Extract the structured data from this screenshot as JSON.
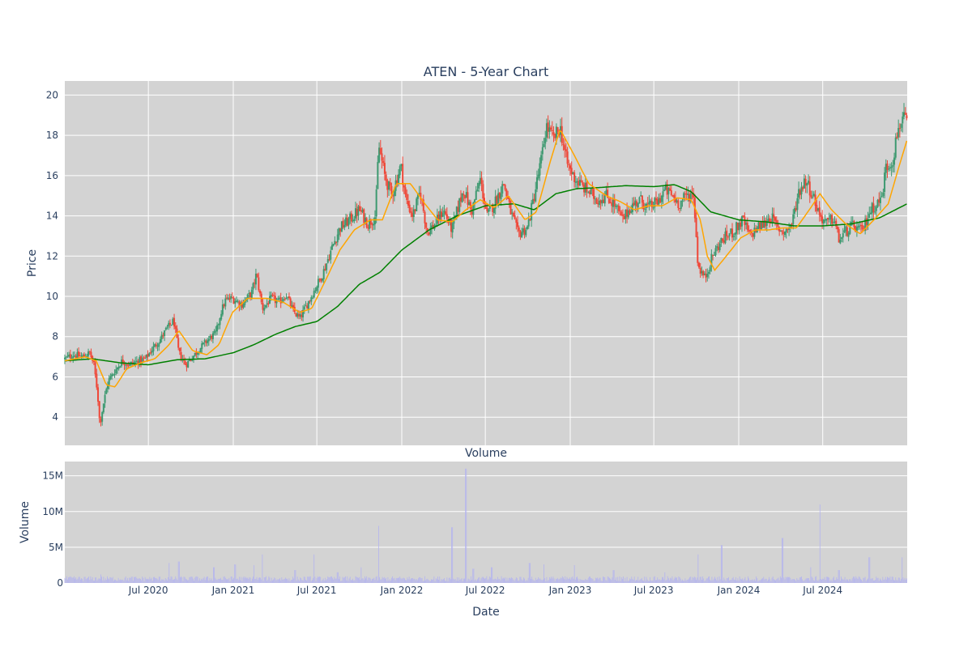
{
  "chart_data": [
    {
      "type": "candlestick",
      "title": "ATEN - 5-Year Chart",
      "ylabel": "Price",
      "xlabel": "",
      "ylim": [
        2.6,
        20.7
      ],
      "yticks": [
        4,
        6,
        8,
        10,
        12,
        14,
        16,
        18,
        20
      ],
      "grid": true,
      "up_color": "#3d9970",
      "down_color": "#ef4637",
      "x_range": [
        "2020-01-02",
        "2024-12-31"
      ],
      "price_path": [
        [
          "2020-01-02",
          6.9
        ],
        [
          "2020-01-20",
          7.1
        ],
        [
          "2020-02-10",
          7.0
        ],
        [
          "2020-02-25",
          7.2
        ],
        [
          "2020-03-05",
          6.6
        ],
        [
          "2020-03-13",
          5.2
        ],
        [
          "2020-03-18",
          3.6
        ],
        [
          "2020-03-25",
          4.6
        ],
        [
          "2020-04-05",
          5.8
        ],
        [
          "2020-04-20",
          6.3
        ],
        [
          "2020-05-05",
          6.8
        ],
        [
          "2020-05-20",
          6.6
        ],
        [
          "2020-06-10",
          6.8
        ],
        [
          "2020-06-25",
          6.9
        ],
        [
          "2020-07-10",
          7.4
        ],
        [
          "2020-07-25",
          7.8
        ],
        [
          "2020-08-10",
          8.4
        ],
        [
          "2020-08-25",
          8.8
        ],
        [
          "2020-09-05",
          7.2
        ],
        [
          "2020-09-20",
          6.6
        ],
        [
          "2020-10-05",
          7.0
        ],
        [
          "2020-10-20",
          7.4
        ],
        [
          "2020-11-05",
          7.8
        ],
        [
          "2020-11-25",
          8.2
        ],
        [
          "2020-12-05",
          9.2
        ],
        [
          "2020-12-15",
          9.8
        ],
        [
          "2020-12-30",
          9.9
        ],
        [
          "2021-01-20",
          9.6
        ],
        [
          "2021-02-10",
          10.2
        ],
        [
          "2021-02-20",
          11.1
        ],
        [
          "2021-03-05",
          9.4
        ],
        [
          "2021-03-25",
          9.9
        ],
        [
          "2021-04-10",
          9.7
        ],
        [
          "2021-04-25",
          10.1
        ],
        [
          "2021-05-10",
          9.3
        ],
        [
          "2021-05-25",
          8.9
        ],
        [
          "2021-06-10",
          9.6
        ],
        [
          "2021-06-30",
          10.5
        ],
        [
          "2021-07-15",
          11.2
        ],
        [
          "2021-08-01",
          12.3
        ],
        [
          "2021-08-20",
          13.4
        ],
        [
          "2021-09-10",
          13.8
        ],
        [
          "2021-10-01",
          14.3
        ],
        [
          "2021-10-20",
          13.6
        ],
        [
          "2021-11-05",
          14.0
        ],
        [
          "2021-11-12",
          17.5
        ],
        [
          "2021-11-25",
          16.0
        ],
        [
          "2021-12-10",
          15.0
        ],
        [
          "2021-12-30",
          16.5
        ],
        [
          "2022-01-10",
          14.8
        ],
        [
          "2022-01-25",
          14.0
        ],
        [
          "2022-02-10",
          15.2
        ],
        [
          "2022-02-25",
          13.2
        ],
        [
          "2022-03-15",
          13.6
        ],
        [
          "2022-04-01",
          14.3
        ],
        [
          "2022-04-20",
          13.3
        ],
        [
          "2022-05-05",
          14.6
        ],
        [
          "2022-05-15",
          15.3
        ],
        [
          "2022-06-01",
          14.2
        ],
        [
          "2022-06-20",
          15.8
        ],
        [
          "2022-07-05",
          14.0
        ],
        [
          "2022-07-20",
          14.6
        ],
        [
          "2022-08-10",
          15.6
        ],
        [
          "2022-08-25",
          14.2
        ],
        [
          "2022-09-10",
          13.1
        ],
        [
          "2022-09-30",
          13.4
        ],
        [
          "2022-10-15",
          15.0
        ],
        [
          "2022-11-01",
          17.0
        ],
        [
          "2022-11-10",
          18.5
        ],
        [
          "2022-11-25",
          17.8
        ],
        [
          "2022-12-10",
          18.4
        ],
        [
          "2022-12-25",
          16.6
        ],
        [
          "2023-01-10",
          15.9
        ],
        [
          "2023-01-25",
          15.5
        ],
        [
          "2023-02-10",
          15.2
        ],
        [
          "2023-03-01",
          14.8
        ],
        [
          "2023-03-20",
          15.0
        ],
        [
          "2023-04-05",
          14.6
        ],
        [
          "2023-04-25",
          13.8
        ],
        [
          "2023-05-10",
          14.4
        ],
        [
          "2023-06-01",
          14.8
        ],
        [
          "2023-06-20",
          14.4
        ],
        [
          "2023-07-10",
          14.7
        ],
        [
          "2023-07-25",
          15.3
        ],
        [
          "2023-08-10",
          15.0
        ],
        [
          "2023-08-25",
          14.6
        ],
        [
          "2023-09-10",
          15.0
        ],
        [
          "2023-09-25",
          15.1
        ],
        [
          "2023-10-05",
          11.5
        ],
        [
          "2023-10-20",
          10.9
        ],
        [
          "2023-11-05",
          12.0
        ],
        [
          "2023-11-20",
          12.6
        ],
        [
          "2023-12-05",
          13.0
        ],
        [
          "2023-12-20",
          13.2
        ],
        [
          "2024-01-10",
          13.8
        ],
        [
          "2024-01-25",
          13.0
        ],
        [
          "2024-02-10",
          13.4
        ],
        [
          "2024-02-25",
          13.6
        ],
        [
          "2024-03-10",
          14.0
        ],
        [
          "2024-03-25",
          13.4
        ],
        [
          "2024-04-10",
          13.2
        ],
        [
          "2024-04-25",
          13.6
        ],
        [
          "2024-05-10",
          15.2
        ],
        [
          "2024-05-25",
          15.8
        ],
        [
          "2024-06-10",
          15.0
        ],
        [
          "2024-06-25",
          14.0
        ],
        [
          "2024-07-10",
          13.6
        ],
        [
          "2024-07-25",
          13.9
        ],
        [
          "2024-08-05",
          12.8
        ],
        [
          "2024-08-20",
          13.2
        ],
        [
          "2024-09-05",
          13.5
        ],
        [
          "2024-09-25",
          13.2
        ],
        [
          "2024-10-10",
          14.2
        ],
        [
          "2024-10-25",
          14.6
        ],
        [
          "2024-11-05",
          14.8
        ],
        [
          "2024-11-15",
          16.4
        ],
        [
          "2024-11-30",
          16.8
        ],
        [
          "2024-12-10",
          18.2
        ],
        [
          "2024-12-20",
          18.9
        ],
        [
          "2024-12-31",
          18.5
        ]
      ],
      "ma_short_path": [
        [
          "2020-01-02",
          6.8
        ],
        [
          "2020-02-15",
          7.0
        ],
        [
          "2020-03-10",
          6.8
        ],
        [
          "2020-04-01",
          5.6
        ],
        [
          "2020-04-20",
          5.5
        ],
        [
          "2020-05-15",
          6.4
        ],
        [
          "2020-06-15",
          6.7
        ],
        [
          "2020-07-15",
          6.9
        ],
        [
          "2020-08-15",
          7.6
        ],
        [
          "2020-09-05",
          8.3
        ],
        [
          "2020-10-05",
          7.3
        ],
        [
          "2020-11-05",
          7.1
        ],
        [
          "2020-12-01",
          7.6
        ],
        [
          "2020-12-30",
          9.2
        ],
        [
          "2021-02-01",
          9.9
        ],
        [
          "2021-03-15",
          9.9
        ],
        [
          "2021-04-20",
          9.7
        ],
        [
          "2021-05-25",
          9.2
        ],
        [
          "2021-06-20",
          9.4
        ],
        [
          "2021-07-20",
          10.8
        ],
        [
          "2021-08-20",
          12.3
        ],
        [
          "2021-09-20",
          13.3
        ],
        [
          "2021-10-25",
          13.8
        ],
        [
          "2021-11-20",
          13.8
        ],
        [
          "2021-12-20",
          15.6
        ],
        [
          "2022-01-20",
          15.6
        ],
        [
          "2022-02-20",
          14.6
        ],
        [
          "2022-03-20",
          13.8
        ],
        [
          "2022-04-20",
          13.7
        ],
        [
          "2022-05-20",
          14.3
        ],
        [
          "2022-06-20",
          14.8
        ],
        [
          "2022-07-20",
          14.4
        ],
        [
          "2022-08-20",
          15.0
        ],
        [
          "2022-09-25",
          13.8
        ],
        [
          "2022-10-20",
          14.2
        ],
        [
          "2022-11-20",
          16.8
        ],
        [
          "2022-12-10",
          18.3
        ],
        [
          "2023-01-10",
          17.0
        ],
        [
          "2023-02-10",
          15.6
        ],
        [
          "2023-03-20",
          15.0
        ],
        [
          "2023-04-20",
          14.7
        ],
        [
          "2023-05-20",
          14.3
        ],
        [
          "2023-06-20",
          14.5
        ],
        [
          "2023-07-20",
          14.5
        ],
        [
          "2023-08-20",
          14.9
        ],
        [
          "2023-09-20",
          14.8
        ],
        [
          "2023-10-10",
          13.8
        ],
        [
          "2023-10-25",
          12.0
        ],
        [
          "2023-11-10",
          11.3
        ],
        [
          "2023-12-05",
          12.0
        ],
        [
          "2024-01-05",
          12.9
        ],
        [
          "2024-02-05",
          13.3
        ],
        [
          "2024-03-05",
          13.3
        ],
        [
          "2024-04-05",
          13.4
        ],
        [
          "2024-05-05",
          13.4
        ],
        [
          "2024-06-05",
          14.4
        ],
        [
          "2024-06-25",
          15.1
        ],
        [
          "2024-07-20",
          14.3
        ],
        [
          "2024-08-20",
          13.6
        ],
        [
          "2024-09-20",
          13.1
        ],
        [
          "2024-10-20",
          13.8
        ],
        [
          "2024-11-20",
          14.6
        ],
        [
          "2024-12-10",
          16.2
        ],
        [
          "2024-12-31",
          17.8
        ]
      ],
      "ma_long_path": [
        [
          "2020-01-02",
          6.8
        ],
        [
          "2020-03-01",
          6.9
        ],
        [
          "2020-05-01",
          6.7
        ],
        [
          "2020-07-01",
          6.6
        ],
        [
          "2020-09-01",
          6.85
        ],
        [
          "2020-11-01",
          6.9
        ],
        [
          "2021-01-01",
          7.2
        ],
        [
          "2021-02-15",
          7.6
        ],
        [
          "2021-04-01",
          8.1
        ],
        [
          "2021-05-15",
          8.5
        ],
        [
          "2021-07-01",
          8.75
        ],
        [
          "2021-08-15",
          9.5
        ],
        [
          "2021-10-01",
          10.6
        ],
        [
          "2021-11-15",
          11.2
        ],
        [
          "2022-01-01",
          12.3
        ],
        [
          "2022-03-01",
          13.3
        ],
        [
          "2022-05-01",
          14.0
        ],
        [
          "2022-07-01",
          14.5
        ],
        [
          "2022-09-01",
          14.6
        ],
        [
          "2022-10-15",
          14.3
        ],
        [
          "2022-12-01",
          15.1
        ],
        [
          "2023-01-15",
          15.35
        ],
        [
          "2023-03-01",
          15.4
        ],
        [
          "2023-05-01",
          15.5
        ],
        [
          "2023-07-01",
          15.45
        ],
        [
          "2023-08-15",
          15.55
        ],
        [
          "2023-09-20",
          15.2
        ],
        [
          "2023-11-01",
          14.2
        ],
        [
          "2024-01-01",
          13.8
        ],
        [
          "2024-03-01",
          13.7
        ],
        [
          "2024-05-01",
          13.5
        ],
        [
          "2024-07-01",
          13.5
        ],
        [
          "2024-09-01",
          13.6
        ],
        [
          "2024-11-01",
          13.9
        ],
        [
          "2024-12-31",
          14.6
        ]
      ],
      "ma_short_color": "#ffa500",
      "ma_long_color": "#008000"
    },
    {
      "type": "bar",
      "title": "Volume",
      "ylabel": "Volume",
      "xlabel": "Date",
      "ylim": [
        0,
        17000000
      ],
      "yticks": [
        0,
        5000000,
        10000000,
        15000000
      ],
      "ytick_labels": [
        "0",
        "5M",
        "10M",
        "15M"
      ],
      "bar_color": "#b3b3f0",
      "grid": true,
      "xticks": [
        "2020-07-01",
        "2021-01-01",
        "2021-07-01",
        "2022-01-01",
        "2022-07-01",
        "2023-01-01",
        "2023-07-01",
        "2024-01-01",
        "2024-07-01"
      ],
      "xtick_labels": [
        "Jul 2020",
        "Jan 2021",
        "Jul 2021",
        "Jan 2022",
        "Jul 2022",
        "Jan 2023",
        "Jul 2023",
        "Jan 2024",
        "Jul 2024"
      ],
      "baseline_volume": 500000,
      "spikes": [
        [
          "2020-03-20",
          1200000
        ],
        [
          "2020-08-15",
          2800000
        ],
        [
          "2020-09-05",
          3000000
        ],
        [
          "2020-11-20",
          2200000
        ],
        [
          "2021-01-05",
          2600000
        ],
        [
          "2021-02-15",
          2500000
        ],
        [
          "2021-03-05",
          4000000
        ],
        [
          "2021-05-15",
          1800000
        ],
        [
          "2021-06-25",
          4000000
        ],
        [
          "2021-08-15",
          1500000
        ],
        [
          "2021-10-05",
          2200000
        ],
        [
          "2021-11-12",
          8000000
        ],
        [
          "2022-04-20",
          7800000
        ],
        [
          "2022-05-20",
          16000000
        ],
        [
          "2022-06-05",
          2000000
        ],
        [
          "2022-07-15",
          2200000
        ],
        [
          "2022-10-05",
          2800000
        ],
        [
          "2022-11-05",
          2600000
        ],
        [
          "2023-01-10",
          2500000
        ],
        [
          "2023-04-05",
          1800000
        ],
        [
          "2023-07-25",
          1500000
        ],
        [
          "2023-10-05",
          4000000
        ],
        [
          "2023-11-25",
          5300000
        ],
        [
          "2024-04-05",
          6300000
        ],
        [
          "2024-06-05",
          2200000
        ],
        [
          "2024-06-25",
          11000000
        ],
        [
          "2024-08-05",
          1800000
        ],
        [
          "2024-10-10",
          3600000
        ],
        [
          "2024-12-20",
          3600000
        ]
      ]
    }
  ]
}
